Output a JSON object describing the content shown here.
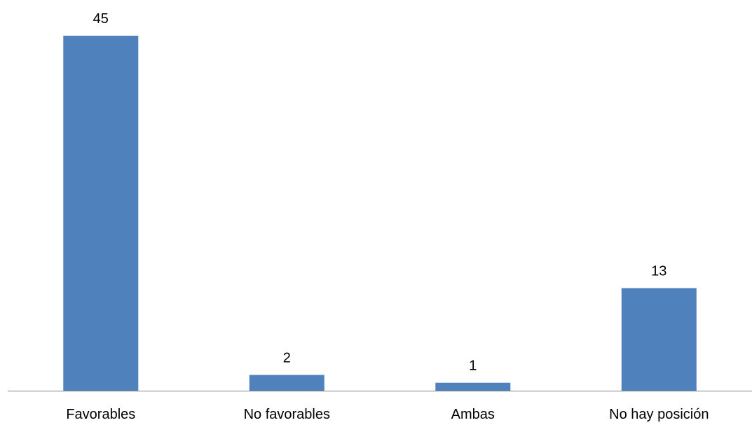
{
  "chart_data": {
    "type": "bar",
    "categories": [
      "Favorables",
      "No favorables",
      "Ambas",
      "No hay posición"
    ],
    "values": [
      45,
      2,
      1,
      13
    ],
    "title": "",
    "xlabel": "",
    "ylabel": "",
    "ylim": [
      0,
      45
    ],
    "grid": false,
    "legend": "none",
    "data_labels": true,
    "bar_color": "#4F81BD",
    "axis_color": "#868686"
  }
}
